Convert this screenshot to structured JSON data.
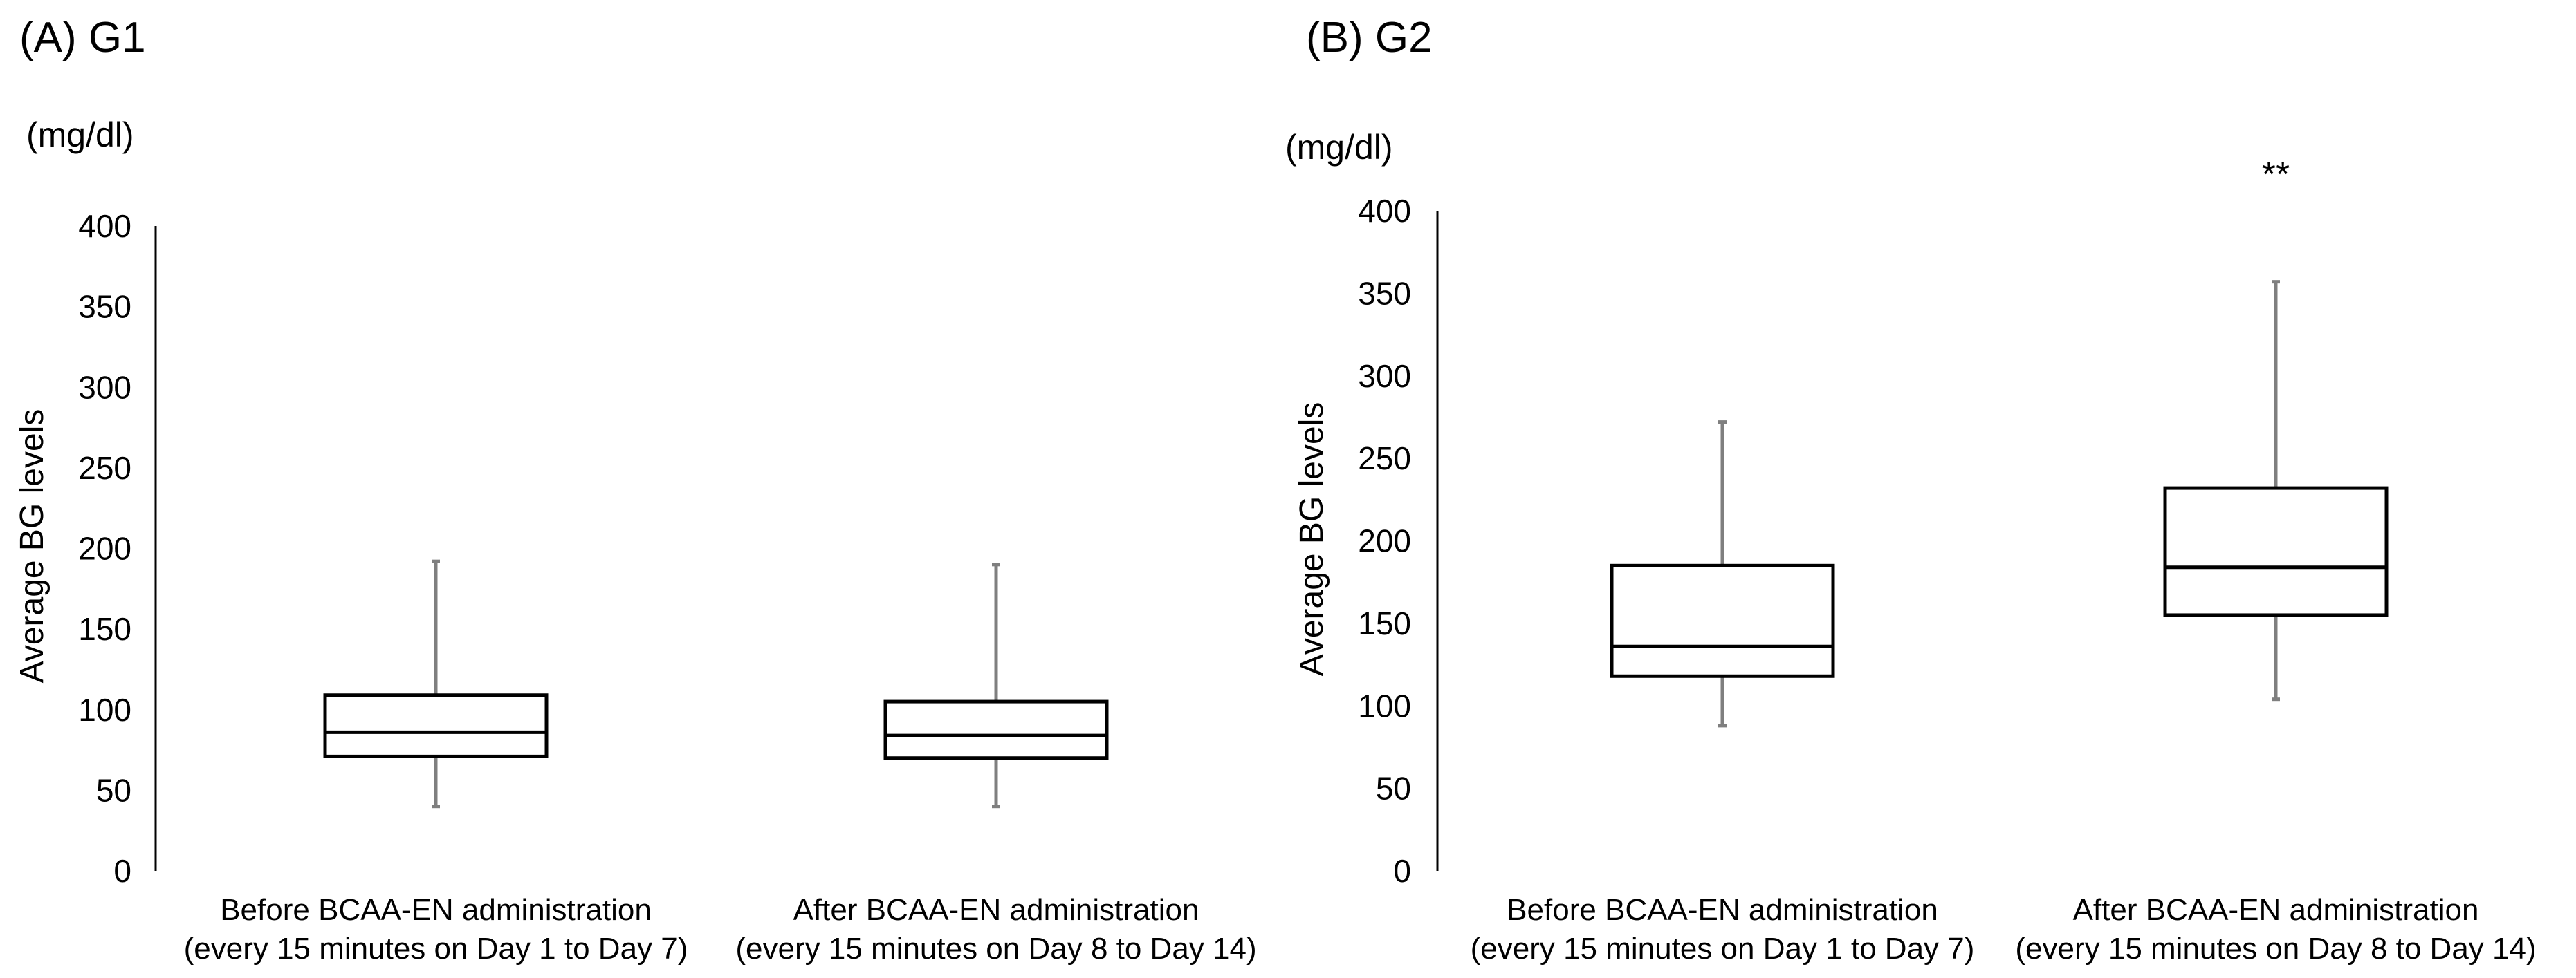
{
  "chart_data": [
    {
      "panel": "A",
      "type": "boxplot",
      "title": "(A) G1",
      "unit_label": "(mg/dl)",
      "ylabel": "Average BG levels",
      "xlabel": "",
      "ylim": [
        0,
        400
      ],
      "yticks": [
        0,
        50,
        100,
        150,
        200,
        250,
        300,
        350,
        400
      ],
      "categories": [
        {
          "line1": "Before BCAA-EN administration",
          "line2": "(every 15 minutes on Day 1 to Day 7)"
        },
        {
          "line1": "After BCAA-EN administration",
          "line2": "(every 15 minutes on Day 8 to Day 14)"
        }
      ],
      "boxes": [
        {
          "min": 40,
          "q1": 71,
          "median": 86,
          "q3": 109,
          "max": 192
        },
        {
          "min": 40,
          "q1": 70,
          "median": 84,
          "q3": 105,
          "max": 190
        }
      ],
      "annotation": null
    },
    {
      "panel": "B",
      "type": "boxplot",
      "title": "(B) G2",
      "unit_label": "(mg/dl)",
      "ylabel": "Average BG levels",
      "xlabel": "",
      "ylim": [
        0,
        400
      ],
      "yticks": [
        0,
        50,
        100,
        150,
        200,
        250,
        300,
        350,
        400
      ],
      "categories": [
        {
          "line1": "Before BCAA-EN administration",
          "line2": "(every 15 minutes on Day 1 to Day 7)"
        },
        {
          "line1": "After BCAA-EN administration",
          "line2": "(every 15 minutes on Day 8 to Day 14)"
        }
      ],
      "boxes": [
        {
          "min": 88,
          "q1": 118,
          "median": 136,
          "q3": 185,
          "max": 272
        },
        {
          "min": 104,
          "q1": 155,
          "median": 184,
          "q3": 232,
          "max": 357
        }
      ],
      "annotation": "**"
    }
  ]
}
